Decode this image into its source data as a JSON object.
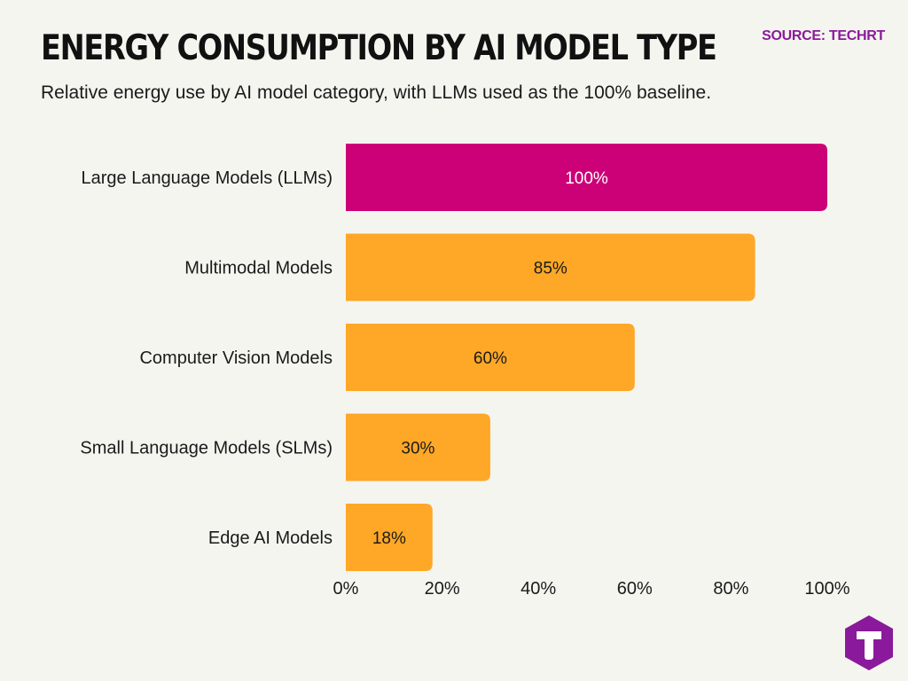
{
  "header": {
    "title": "ENERGY CONSUMPTION BY AI MODEL TYPE",
    "subtitle": "Relative energy use by AI model category, with LLMs used as the 100% baseline.",
    "source": "SOURCE: TECHRT"
  },
  "colors": {
    "highlight": "#cc0077",
    "bar": "#ffa726",
    "background": "#f5f5f0",
    "source_text": "#8a1a9b",
    "logo": "#8a1a9b"
  },
  "logo": {
    "icon": "techrt-hexagon-t-icon"
  },
  "chart_data": {
    "type": "bar",
    "orientation": "horizontal",
    "categories": [
      "Large Language Models (LLMs)",
      "Multimodal Models",
      "Computer Vision Models",
      "Small Language Models (SLMs)",
      "Edge AI Models"
    ],
    "values": [
      100,
      85,
      60,
      30,
      18
    ],
    "value_labels": [
      "100%",
      "85%",
      "60%",
      "30%",
      "18%"
    ],
    "highlight_index": 0,
    "xlim": [
      0,
      100
    ],
    "xticks": [
      0,
      20,
      40,
      60,
      80,
      100
    ],
    "xtick_labels": [
      "0%",
      "20%",
      "40%",
      "60%",
      "80%",
      "100%"
    ],
    "grid": false,
    "legend": "none"
  }
}
